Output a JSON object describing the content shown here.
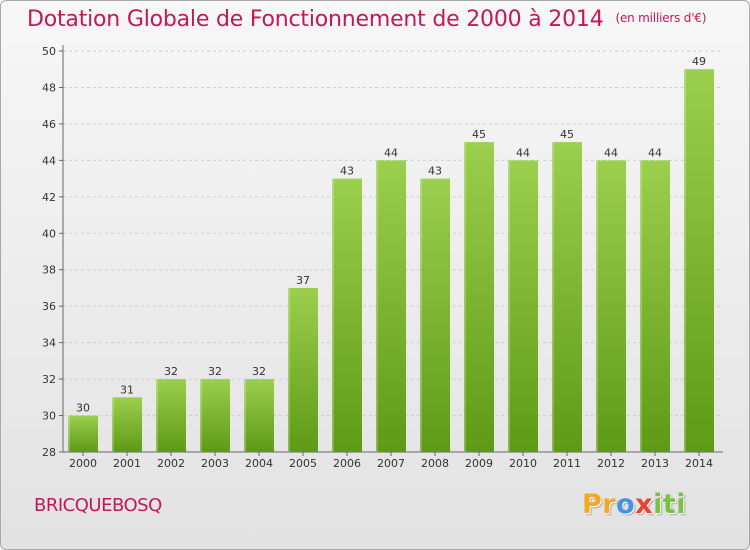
{
  "header": {
    "title": "Dotation Globale de Fonctionnement de 2000 à 2014",
    "unit": "(en milliers d'€)"
  },
  "footer": {
    "commune": "BRICQUEBOSQ",
    "logo_text": "Proxiti"
  },
  "colors": {
    "title": "#c2185b",
    "bar_top": "#9bcf4e",
    "bar_bottom": "#5e9a16",
    "grid": "#cfcfcf"
  },
  "chart_data": {
    "type": "bar",
    "title": "Dotation Globale de Fonctionnement de 2000 à 2014",
    "subtitle": "(en milliers d'€)",
    "xlabel": "",
    "ylabel": "",
    "categories": [
      "2000",
      "2001",
      "2002",
      "2003",
      "2004",
      "2005",
      "2006",
      "2007",
      "2008",
      "2009",
      "2010",
      "2011",
      "2012",
      "2013",
      "2014"
    ],
    "values": [
      30,
      31,
      32,
      32,
      32,
      37,
      43,
      44,
      43,
      45,
      44,
      45,
      44,
      44,
      49
    ],
    "ylim": [
      28,
      50
    ],
    "yticks": [
      28,
      30,
      32,
      34,
      36,
      38,
      40,
      42,
      44,
      46,
      48,
      50
    ],
    "grid": "horizontal dashed",
    "legend": "none",
    "data_labels": true
  }
}
